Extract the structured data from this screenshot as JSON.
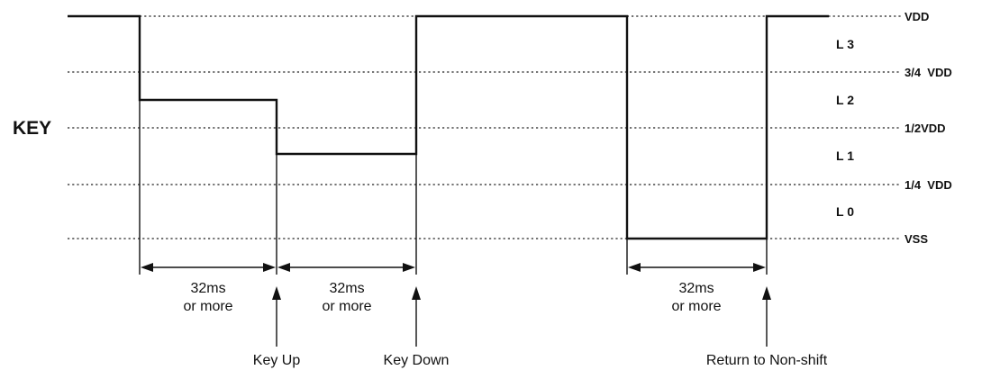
{
  "signal_label": "KEY",
  "rails": {
    "vdd": "VDD",
    "three_quarter": "3/4  VDD",
    "half": "1/2VDD",
    "quarter": "1/4  VDD",
    "vss": "VSS"
  },
  "levels": {
    "l3": "L 3",
    "l2": "L 2",
    "l1": "L 1",
    "l0": "L 0"
  },
  "intervals": [
    {
      "line1": "32ms",
      "line2": "or more"
    },
    {
      "line1": "32ms",
      "line2": "or more"
    },
    {
      "line1": "32ms",
      "line2": "or more"
    }
  ],
  "events": {
    "key_up": "Key Up",
    "key_down": "Key Down",
    "return": "Return to Non-shift"
  }
}
